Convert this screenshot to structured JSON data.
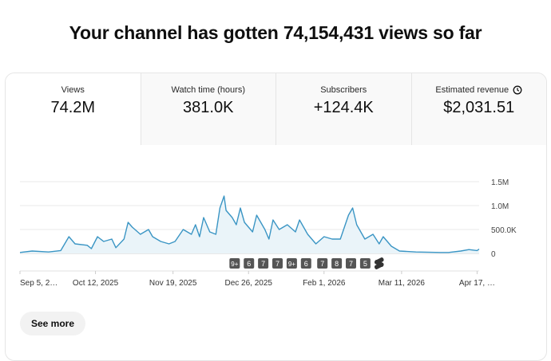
{
  "headline": "Your channel has gotten 74,154,431 views so far",
  "tabs": [
    {
      "label": "Views",
      "value": "74.2M",
      "selected": true
    },
    {
      "label": "Watch time (hours)",
      "value": "381.0K"
    },
    {
      "label": "Subscribers",
      "value": "+124.4K"
    },
    {
      "label": "Estimated revenue",
      "value": "$2,031.51",
      "icon": "clock-icon"
    }
  ],
  "see_more": "See more",
  "chart_data": {
    "type": "area",
    "line_color": "#3a95c4",
    "fill_color": "#eaf4f9",
    "grid": true,
    "y_ticks": [
      "0",
      "500.0K",
      "1.0M",
      "1.5M"
    ],
    "ylim": [
      0,
      1500000
    ],
    "xlim": [
      "2025-09-05",
      "2026-04-18"
    ],
    "x_tick_labels": [
      "Sep 5, 2…",
      "Oct 12, 2025",
      "Nov 19, 2025",
      "Dec 26, 2025",
      "Feb 1, 2026",
      "Mar 11, 2026",
      "Apr 17, …"
    ],
    "x_tick_dates": [
      "2025-09-05",
      "2025-10-12",
      "2025-11-19",
      "2025-12-26",
      "2026-02-01",
      "2026-03-11",
      "2026-04-17"
    ],
    "markers": [
      {
        "label": "9+",
        "date": "2025-12-19"
      },
      {
        "label": "6",
        "date": "2025-12-26"
      },
      {
        "label": "7",
        "date": "2026-01-02"
      },
      {
        "label": "7",
        "date": "2026-01-09"
      },
      {
        "label": "9+",
        "date": "2026-01-16"
      },
      {
        "label": "6",
        "date": "2026-01-23"
      },
      {
        "label": "7",
        "date": "2026-01-31"
      },
      {
        "label": "8",
        "date": "2026-02-07"
      },
      {
        "label": "7",
        "date": "2026-02-14"
      },
      {
        "label": "5",
        "date": "2026-02-21"
      },
      {
        "label": "shorts",
        "date": "2026-02-28",
        "icon": "shorts-icon"
      }
    ],
    "points": [
      [
        "2025-09-05",
        20000
      ],
      [
        "2025-09-11",
        50000
      ],
      [
        "2025-09-19",
        30000
      ],
      [
        "2025-09-25",
        60000
      ],
      [
        "2025-09-29",
        350000
      ],
      [
        "2025-10-02",
        200000
      ],
      [
        "2025-10-08",
        170000
      ],
      [
        "2025-10-10",
        100000
      ],
      [
        "2025-10-13",
        350000
      ],
      [
        "2025-10-16",
        250000
      ],
      [
        "2025-10-20",
        300000
      ],
      [
        "2025-10-22",
        120000
      ],
      [
        "2025-10-26",
        300000
      ],
      [
        "2025-10-28",
        650000
      ],
      [
        "2025-10-30",
        550000
      ],
      [
        "2025-11-03",
        400000
      ],
      [
        "2025-11-07",
        500000
      ],
      [
        "2025-11-09",
        350000
      ],
      [
        "2025-11-13",
        250000
      ],
      [
        "2025-11-17",
        200000
      ],
      [
        "2025-11-20",
        250000
      ],
      [
        "2025-11-24",
        500000
      ],
      [
        "2025-11-28",
        400000
      ],
      [
        "2025-11-30",
        600000
      ],
      [
        "2025-12-02",
        350000
      ],
      [
        "2025-12-04",
        750000
      ],
      [
        "2025-12-07",
        450000
      ],
      [
        "2025-12-10",
        400000
      ],
      [
        "2025-12-12",
        950000
      ],
      [
        "2025-12-14",
        1200000
      ],
      [
        "2025-12-15",
        900000
      ],
      [
        "2025-12-18",
        750000
      ],
      [
        "2025-12-20",
        600000
      ],
      [
        "2025-12-22",
        950000
      ],
      [
        "2025-12-24",
        650000
      ],
      [
        "2025-12-28",
        450000
      ],
      [
        "2025-12-30",
        800000
      ],
      [
        "2026-01-03",
        500000
      ],
      [
        "2026-01-05",
        300000
      ],
      [
        "2026-01-07",
        700000
      ],
      [
        "2026-01-10",
        500000
      ],
      [
        "2026-01-14",
        600000
      ],
      [
        "2026-01-18",
        450000
      ],
      [
        "2026-01-20",
        700000
      ],
      [
        "2026-01-24",
        400000
      ],
      [
        "2026-01-28",
        200000
      ],
      [
        "2026-02-01",
        350000
      ],
      [
        "2026-02-05",
        300000
      ],
      [
        "2026-02-09",
        300000
      ],
      [
        "2026-02-13",
        800000
      ],
      [
        "2026-02-15",
        950000
      ],
      [
        "2026-02-17",
        600000
      ],
      [
        "2026-02-21",
        300000
      ],
      [
        "2026-02-25",
        400000
      ],
      [
        "2026-02-28",
        200000
      ],
      [
        "2026-03-02",
        350000
      ],
      [
        "2026-03-06",
        150000
      ],
      [
        "2026-03-10",
        50000
      ],
      [
        "2026-03-18",
        30000
      ],
      [
        "2026-03-30",
        20000
      ],
      [
        "2026-04-03",
        20000
      ],
      [
        "2026-04-09",
        50000
      ],
      [
        "2026-04-13",
        80000
      ],
      [
        "2026-04-17",
        60000
      ],
      [
        "2026-04-18",
        90000
      ]
    ]
  }
}
